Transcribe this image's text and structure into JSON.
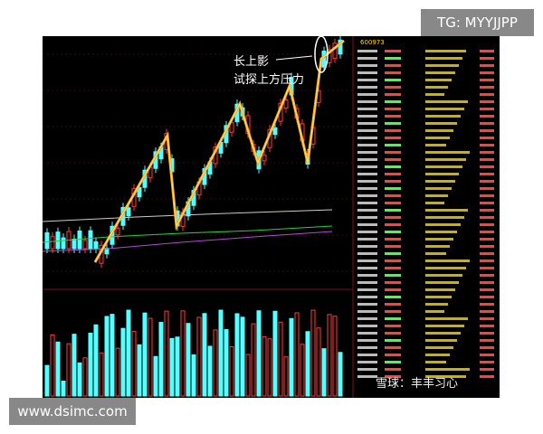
{
  "watermark_top": "TG: MYYJJPP",
  "watermark_bottom": "www.dsimc.com",
  "stock_code": "600973",
  "annotation": {
    "line1": "长上影",
    "line2": "试探上方压力"
  },
  "source_mark": "雪球：丰丰习心"
}
